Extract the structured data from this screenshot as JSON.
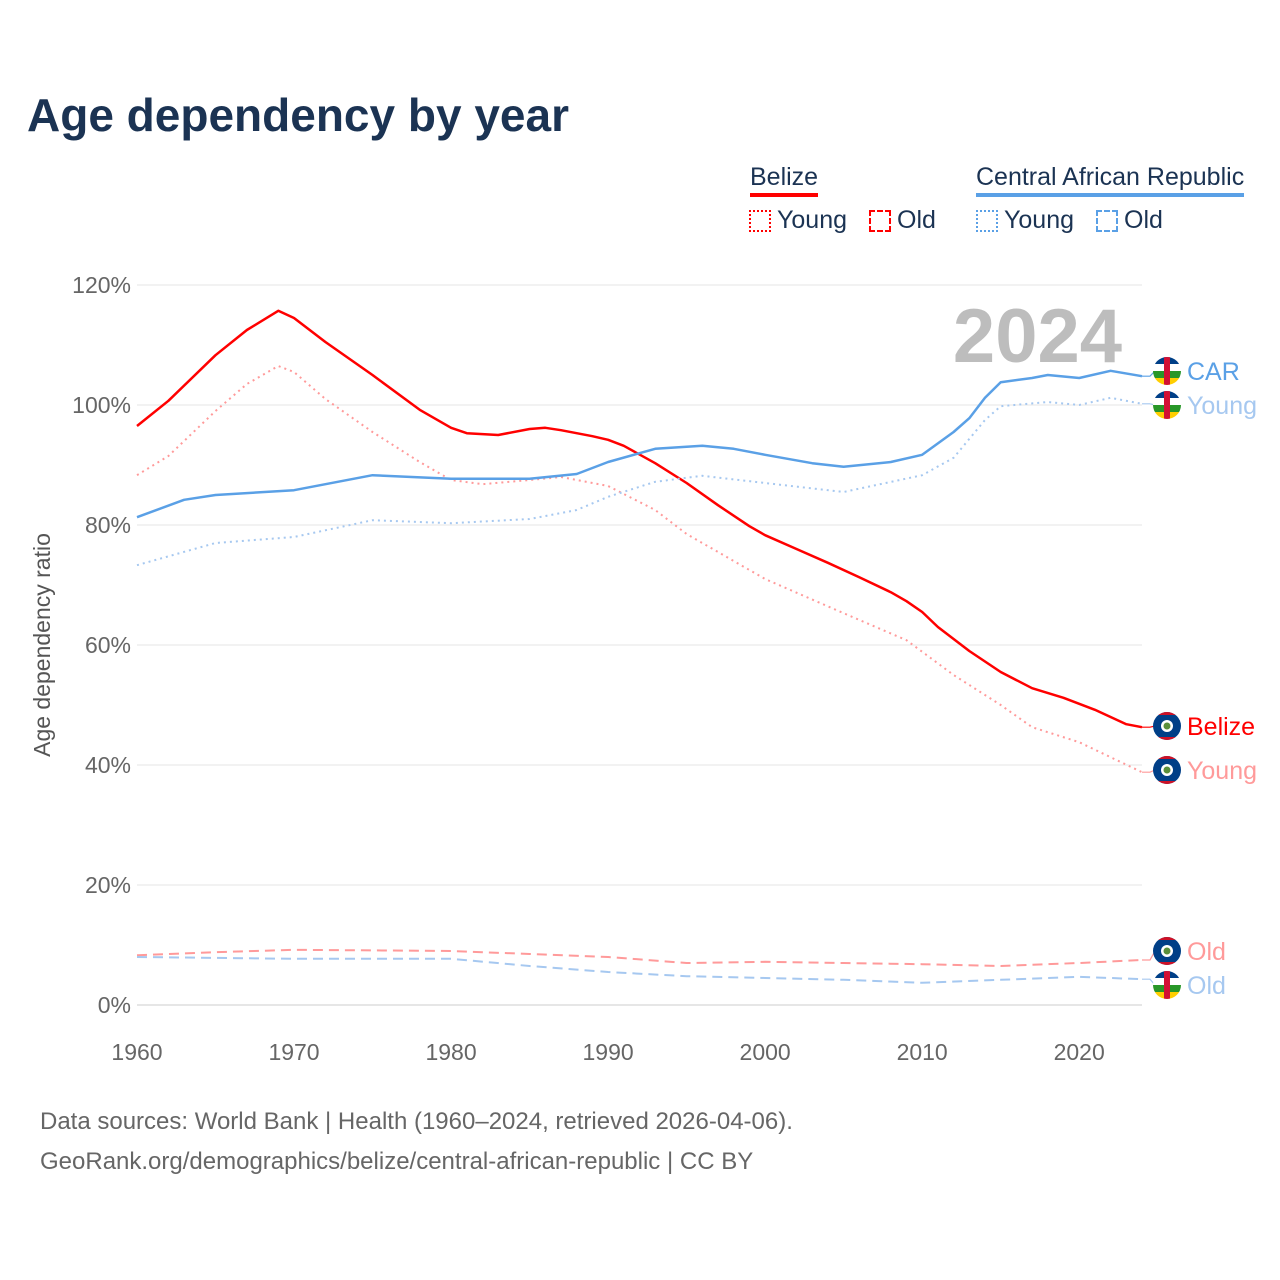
{
  "title": "Age dependency by year",
  "legend": {
    "groups": [
      {
        "name": "Belize",
        "color": "#ff0000",
        "young": "Young",
        "old": "Old"
      },
      {
        "name": "Central African Republic",
        "color": "#5aa0e6",
        "young": "Young",
        "old": "Old"
      }
    ]
  },
  "footer": {
    "line1": "Data sources: World Bank | Health (1960–2024, retrieved 2026-04-06).",
    "line2": "GeoRank.org/demographics/belize/central-african-republic | CC BY"
  },
  "chart_data": {
    "type": "line",
    "title": "Age dependency by year",
    "xlabel": "",
    "ylabel": "Age dependency ratio",
    "xlim": [
      1960,
      2024
    ],
    "ylim": [
      0,
      120
    ],
    "xticks": [
      1960,
      1970,
      1980,
      1990,
      2000,
      2010,
      2020
    ],
    "yticks": [
      0,
      20,
      40,
      60,
      80,
      100,
      120
    ],
    "ytick_labels": [
      "0%",
      "20%",
      "40%",
      "60%",
      "80%",
      "100%",
      "120%"
    ],
    "xtick_labels": [
      "1960",
      "1970",
      "1980",
      "1990",
      "2000",
      "2010",
      "2020"
    ],
    "year_watermark": "2024",
    "series": [
      {
        "name": "Belize",
        "label": "Belize",
        "color": "#ff0000",
        "style": "solid",
        "x": [
          1960,
          1962,
          1965,
          1967,
          1969,
          1970,
          1972,
          1975,
          1978,
          1980,
          1981,
          1983,
          1985,
          1986,
          1987,
          1989,
          1990,
          1991,
          1993,
          1995,
          1997,
          1999,
          2000,
          2002,
          2004,
          2006,
          2008,
          2009,
          2010,
          2011,
          2013,
          2015,
          2017,
          2019,
          2021,
          2022,
          2023,
          2024
        ],
        "y": [
          96.5,
          100.7,
          108.3,
          112.5,
          115.7,
          114.5,
          110.5,
          105,
          99.2,
          96.2,
          95.3,
          95,
          96,
          96.2,
          95.8,
          94.8,
          94.2,
          93.2,
          90.3,
          87,
          83.3,
          79.8,
          78.3,
          76,
          73.7,
          71.3,
          68.8,
          67.3,
          65.5,
          63,
          59,
          55.5,
          52.8,
          51.2,
          49.2,
          48,
          46.8,
          46.3
        ]
      },
      {
        "name": "Belize Young",
        "label": "Young",
        "color": "#ff9a9a",
        "style": "dotted",
        "x": [
          1960,
          1962,
          1965,
          1967,
          1969,
          1970,
          1972,
          1975,
          1978,
          1980,
          1982,
          1985,
          1987,
          1990,
          1993,
          1995,
          2000,
          2005,
          2009,
          2012,
          2015,
          2017,
          2020,
          2022,
          2024
        ],
        "y": [
          88.3,
          91.5,
          99,
          103.5,
          106.5,
          105.5,
          101,
          95.5,
          90.5,
          87.5,
          86.8,
          87.5,
          88,
          86.5,
          82.5,
          78.5,
          71,
          65.3,
          60.8,
          55,
          50,
          46.3,
          43.8,
          41.3,
          38.8
        ]
      },
      {
        "name": "Belize Old",
        "label": "Old",
        "color": "#ff9a9a",
        "style": "dashed",
        "x": [
          1960,
          1965,
          1970,
          1975,
          1980,
          1985,
          1990,
          1995,
          2000,
          2005,
          2010,
          2015,
          2020,
          2024
        ],
        "y": [
          8.3,
          8.8,
          9.2,
          9.1,
          9,
          8.5,
          8,
          7,
          7.2,
          7,
          6.8,
          6.5,
          7,
          7.5
        ]
      },
      {
        "name": "Central African Republic",
        "label": "CAR",
        "color": "#5aa0e6",
        "style": "solid",
        "x": [
          1960,
          1963,
          1965,
          1970,
          1975,
          1980,
          1985,
          1988,
          1990,
          1993,
          1996,
          1998,
          2000,
          2003,
          2005,
          2008,
          2010,
          2012,
          2013,
          2014,
          2015,
          2017,
          2018,
          2020,
          2022,
          2024
        ],
        "y": [
          81.3,
          84.2,
          85,
          85.8,
          88.3,
          87.7,
          87.7,
          88.5,
          90.5,
          92.7,
          93.2,
          92.7,
          91.7,
          90.3,
          89.7,
          90.5,
          91.7,
          95.5,
          97.8,
          101.2,
          103.8,
          104.5,
          105,
          104.5,
          105.7,
          104.8
        ]
      },
      {
        "name": "Central African Republic Young",
        "label": "Young",
        "color": "#a6c8f0",
        "style": "dotted",
        "x": [
          1960,
          1965,
          1970,
          1975,
          1980,
          1985,
          1988,
          1990,
          1993,
          1996,
          2000,
          2005,
          2010,
          2012,
          2014,
          2015,
          2018,
          2020,
          2022,
          2024
        ],
        "y": [
          73.3,
          77,
          78,
          80.8,
          80.3,
          81,
          82.5,
          84.7,
          87.2,
          88.2,
          87,
          85.5,
          88.3,
          91.2,
          97.5,
          99.8,
          100.5,
          100,
          101.2,
          100.2
        ]
      },
      {
        "name": "Central African Republic Old",
        "label": "Old",
        "color": "#a6c8f0",
        "style": "dashed",
        "x": [
          1960,
          1970,
          1980,
          1985,
          1990,
          1995,
          2000,
          2005,
          2010,
          2015,
          2020,
          2024
        ],
        "y": [
          8,
          7.7,
          7.7,
          6.5,
          5.5,
          4.8,
          4.5,
          4.2,
          3.7,
          4.2,
          4.7,
          4.3
        ]
      }
    ]
  }
}
